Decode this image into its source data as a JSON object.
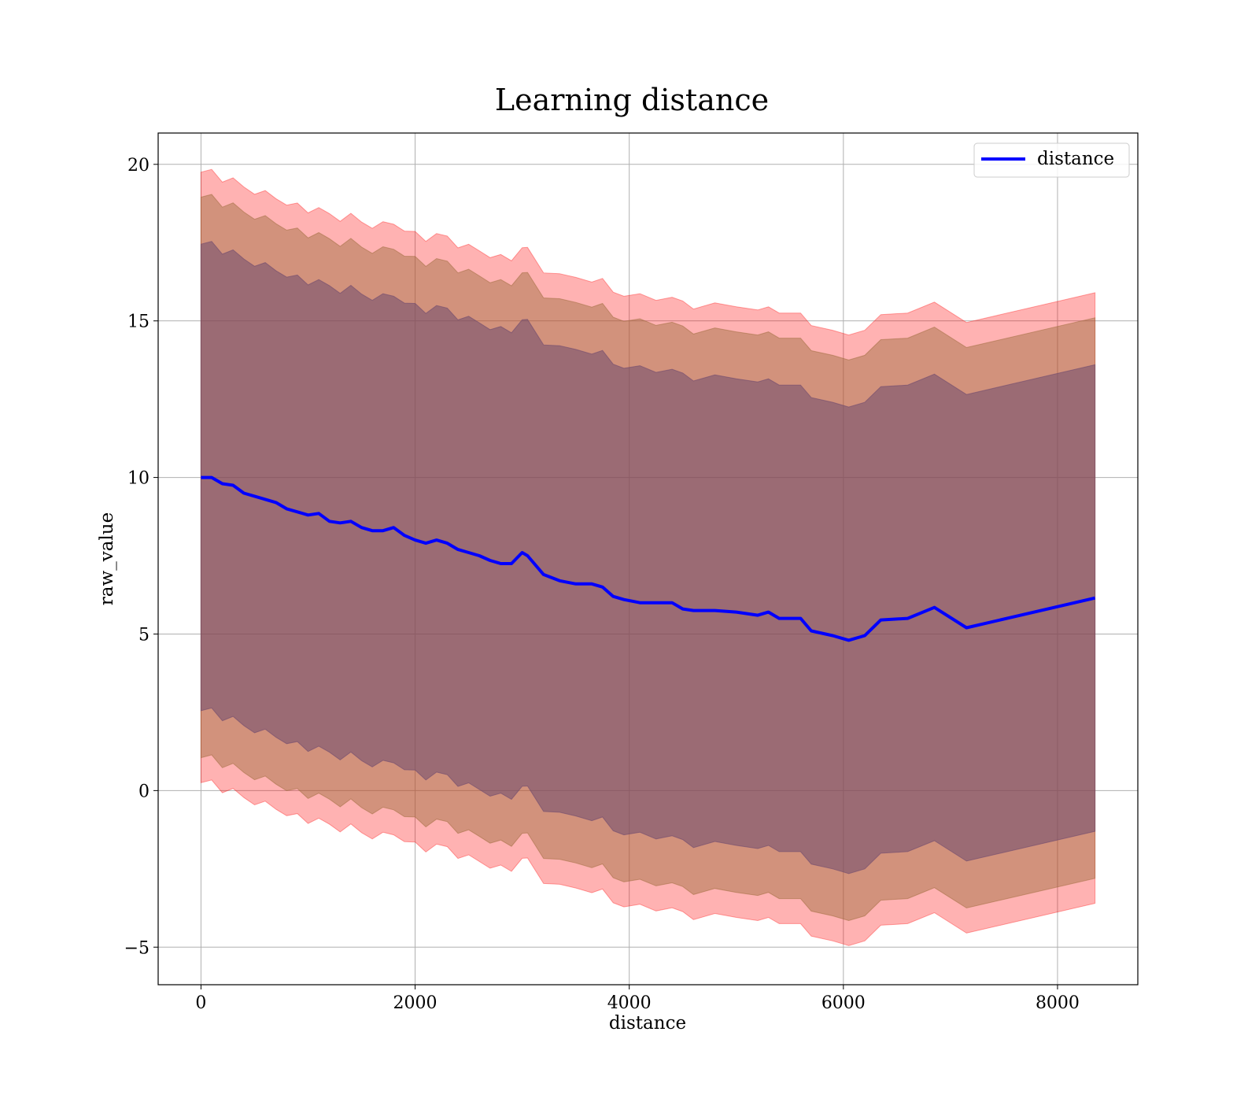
{
  "chart_data": {
    "type": "line",
    "title": "Learning distance",
    "xlabel": "distance",
    "ylabel": "raw_value",
    "xlim": [
      -400,
      8750
    ],
    "ylim": [
      -6.2,
      21.0
    ],
    "xticks": [
      0,
      2000,
      4000,
      6000,
      8000
    ],
    "yticks": [
      -5,
      0,
      5,
      10,
      15,
      20
    ],
    "xtick_labels": [
      "0",
      "2000",
      "4000",
      "6000",
      "8000"
    ],
    "ytick_labels": [
      "−5",
      "0",
      "5",
      "10",
      "15",
      "20"
    ],
    "grid": true,
    "legend": {
      "position": "top-right",
      "entries": [
        "distance"
      ]
    },
    "colors": {
      "line": "#0000ff",
      "band_outer": "#ff0000",
      "band_middle": "#9c6a3a",
      "band_inner": "#6e4a6e",
      "grid": "#b0b0b0"
    },
    "series": [
      {
        "name": "distance",
        "x": [
          0,
          100,
          200,
          300,
          400,
          500,
          600,
          700,
          800,
          900,
          1000,
          1100,
          1200,
          1300,
          1400,
          1500,
          1600,
          1700,
          1800,
          1900,
          2000,
          2100,
          2200,
          2300,
          2400,
          2500,
          2600,
          2700,
          2800,
          2900,
          3000,
          3050,
          3200,
          3350,
          3500,
          3650,
          3750,
          3850,
          3950,
          4100,
          4250,
          4400,
          4500,
          4600,
          4800,
          5000,
          5200,
          5300,
          5400,
          5600,
          5700,
          5900,
          6000,
          6050,
          6200,
          6350,
          6600,
          6850,
          7150,
          8350
        ],
        "y": [
          10.0,
          10.0,
          9.8,
          9.75,
          9.5,
          9.4,
          9.3,
          9.2,
          9.0,
          8.9,
          8.8,
          8.85,
          8.6,
          8.55,
          8.6,
          8.4,
          8.3,
          8.3,
          8.4,
          8.15,
          8.0,
          7.9,
          8.0,
          7.9,
          7.7,
          7.6,
          7.5,
          7.35,
          7.25,
          7.25,
          7.6,
          7.5,
          6.9,
          6.7,
          6.6,
          6.6,
          6.5,
          6.2,
          6.1,
          6.0,
          6.0,
          6.0,
          5.8,
          5.75,
          5.75,
          5.7,
          5.6,
          5.7,
          5.5,
          5.5,
          5.1,
          4.95,
          4.85,
          4.8,
          4.95,
          5.45,
          5.5,
          5.85,
          5.2,
          6.15
        ],
        "band_inner_halfwidth": 7.45,
        "band_middle_halfwidth": 8.95,
        "band_outer_halfwidth": 9.75
      }
    ]
  }
}
